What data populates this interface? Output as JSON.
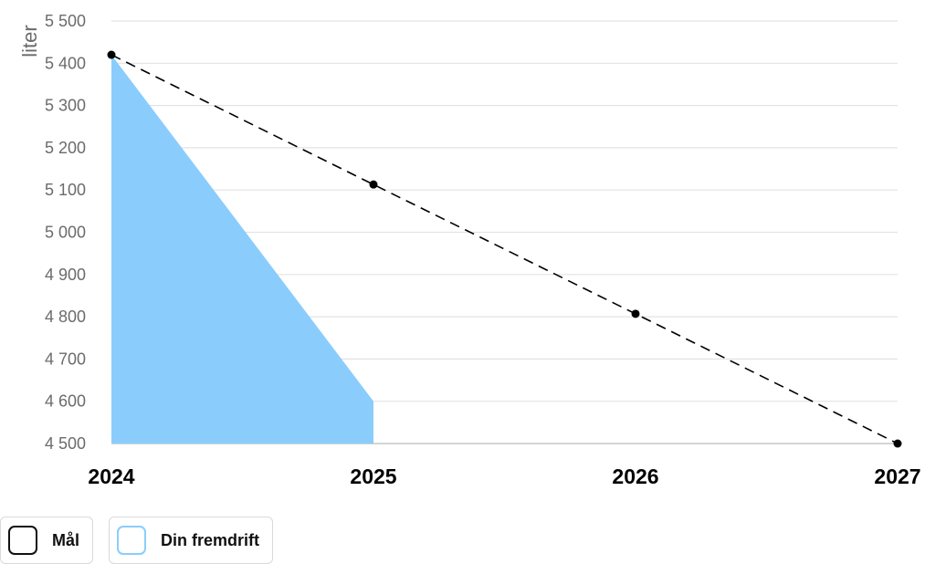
{
  "chart_data": {
    "type": "line",
    "ylabel": "liter",
    "ylim": [
      4500,
      5500
    ],
    "yticks": [
      "5 500",
      "5 400",
      "5 300",
      "5 200",
      "5 100",
      "5 000",
      "4 900",
      "4 800",
      "4 700",
      "4 600",
      "4 500"
    ],
    "ytick_values": [
      5500,
      5400,
      5300,
      5200,
      5100,
      5000,
      4900,
      4800,
      4700,
      4600,
      4500
    ],
    "xticks": [
      "2024",
      "2025",
      "2026",
      "2027"
    ],
    "xlim": [
      2024,
      2027
    ],
    "grid": true,
    "legend_placement": "bottom-left",
    "series": [
      {
        "name": "Mål",
        "style": "dashed-line-with-markers",
        "color": "#000000",
        "x": [
          2024,
          2025,
          2026,
          2027
        ],
        "y": [
          5420,
          5113,
          4807,
          4500
        ]
      },
      {
        "name": "Din fremdrift",
        "style": "area",
        "color": "#8acdfd",
        "x": [
          2024,
          2025
        ],
        "y": [
          5420,
          4600
        ]
      }
    ]
  },
  "legend": {
    "items": [
      {
        "label": "Mål",
        "border_color": "#111111"
      },
      {
        "label": "Din fremdrift",
        "border_color": "#8acdfd"
      }
    ]
  }
}
